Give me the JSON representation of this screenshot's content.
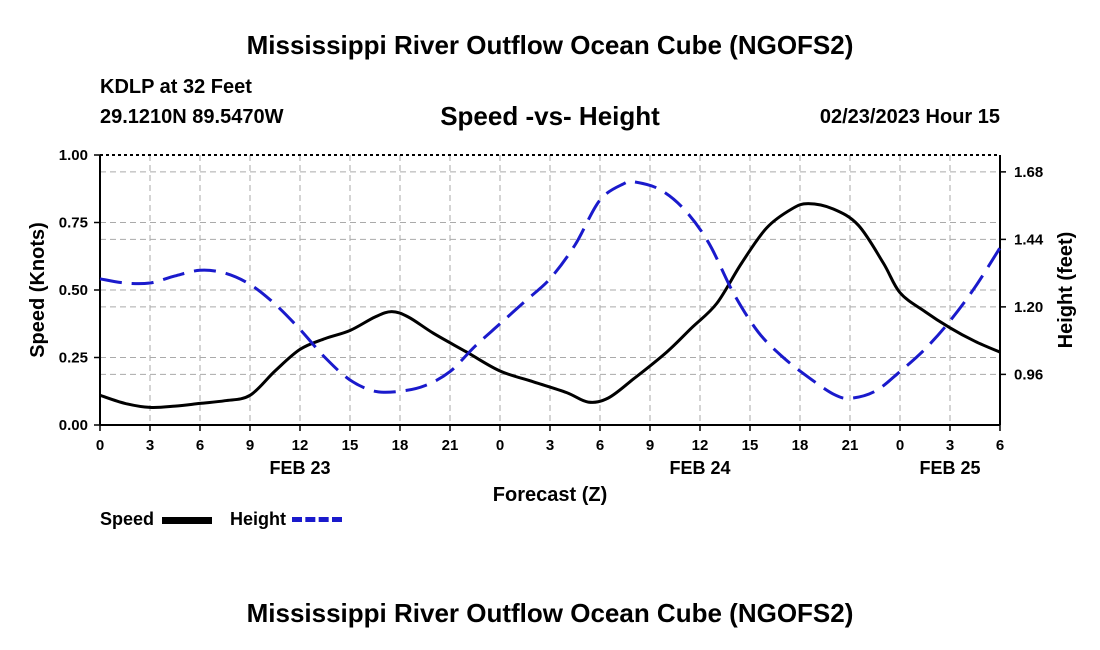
{
  "header": {
    "title": "Mississippi River Outflow Ocean Cube (NGOFS2)",
    "station": "KDLP at 32 Feet",
    "coords": "29.1210N  89.5470W",
    "subtitle": "Speed -vs- Height",
    "datetime": "02/23/2023 Hour 15"
  },
  "footer": {
    "title": "Mississippi River Outflow Ocean Cube (NGOFS2)"
  },
  "legend": {
    "speed_label": "Speed",
    "height_label": "Height"
  },
  "colors": {
    "speed": "#000000",
    "height": "#1a1acc",
    "grid": "#aaaaaa"
  },
  "chart_data": {
    "type": "line",
    "title": "Speed -vs- Height",
    "xlabel": "Forecast (Z)",
    "ylabel": "Speed (Knots)",
    "y2label": "Height (feet)",
    "xlim": [
      0,
      54
    ],
    "ylim": [
      0,
      1.0
    ],
    "y2lim": [
      0.78,
      1.74
    ],
    "yticks": [
      0.0,
      0.25,
      0.5,
      0.75,
      1.0
    ],
    "yticklabels": [
      "0.00",
      "0.25",
      "0.50",
      "0.75",
      "1.00"
    ],
    "y2ticks": [
      0.96,
      1.2,
      1.44,
      1.68
    ],
    "y2ticklabels": [
      "0.96",
      "1.20",
      "1.44",
      "1.68"
    ],
    "xticks": [
      0,
      3,
      6,
      9,
      12,
      15,
      18,
      21,
      24,
      27,
      30,
      33,
      36,
      39,
      42,
      45,
      48,
      51,
      54
    ],
    "xticklabels": [
      "0",
      "3",
      "6",
      "9",
      "12",
      "15",
      "18",
      "21",
      "0",
      "3",
      "6",
      "9",
      "12",
      "15",
      "18",
      "21",
      "0",
      "3",
      "6"
    ],
    "date_labels": [
      {
        "x": 12,
        "label": "FEB 23"
      },
      {
        "x": 36,
        "label": "FEB 24"
      },
      {
        "x": 51,
        "label": "FEB 25"
      }
    ],
    "grid": true,
    "series": [
      {
        "name": "Speed",
        "axis": "left",
        "style": "solid",
        "x": [
          0,
          1.5,
          3,
          4.5,
          6,
          7.5,
          9,
          10.5,
          12,
          13.5,
          15,
          16.5,
          17.5,
          18.5,
          20,
          22,
          24,
          26,
          28,
          29.3,
          30.5,
          32,
          34,
          35.5,
          37,
          38.5,
          40,
          41.5,
          42.5,
          44,
          45.5,
          47,
          48,
          49.5,
          51,
          52.5,
          54
        ],
        "values": [
          0.11,
          0.08,
          0.065,
          0.07,
          0.08,
          0.09,
          0.11,
          0.2,
          0.28,
          0.32,
          0.35,
          0.4,
          0.42,
          0.4,
          0.34,
          0.27,
          0.2,
          0.16,
          0.12,
          0.085,
          0.1,
          0.17,
          0.27,
          0.36,
          0.45,
          0.6,
          0.73,
          0.8,
          0.82,
          0.8,
          0.74,
          0.6,
          0.49,
          0.42,
          0.36,
          0.31,
          0.27
        ]
      },
      {
        "name": "Height",
        "axis": "right",
        "style": "dashed",
        "x": [
          0,
          1.5,
          3,
          4.5,
          6,
          7.5,
          9,
          10.5,
          12,
          13.5,
          15,
          16.5,
          18,
          19.5,
          21,
          22.5,
          24,
          25.5,
          27,
          28.5,
          30,
          31.5,
          32,
          33.5,
          35,
          36.5,
          38,
          39.5,
          41,
          42.5,
          44,
          45,
          46.5,
          48,
          49.5,
          51,
          52.5,
          54
        ],
        "values": [
          1.3,
          1.285,
          1.285,
          1.31,
          1.33,
          1.32,
          1.28,
          1.21,
          1.12,
          1.02,
          0.94,
          0.9,
          0.9,
          0.92,
          0.97,
          1.06,
          1.14,
          1.22,
          1.3,
          1.42,
          1.58,
          1.64,
          1.645,
          1.62,
          1.55,
          1.43,
          1.25,
          1.11,
          1.02,
          0.95,
          0.89,
          0.875,
          0.9,
          0.97,
          1.05,
          1.15,
          1.27,
          1.41
        ]
      }
    ]
  }
}
